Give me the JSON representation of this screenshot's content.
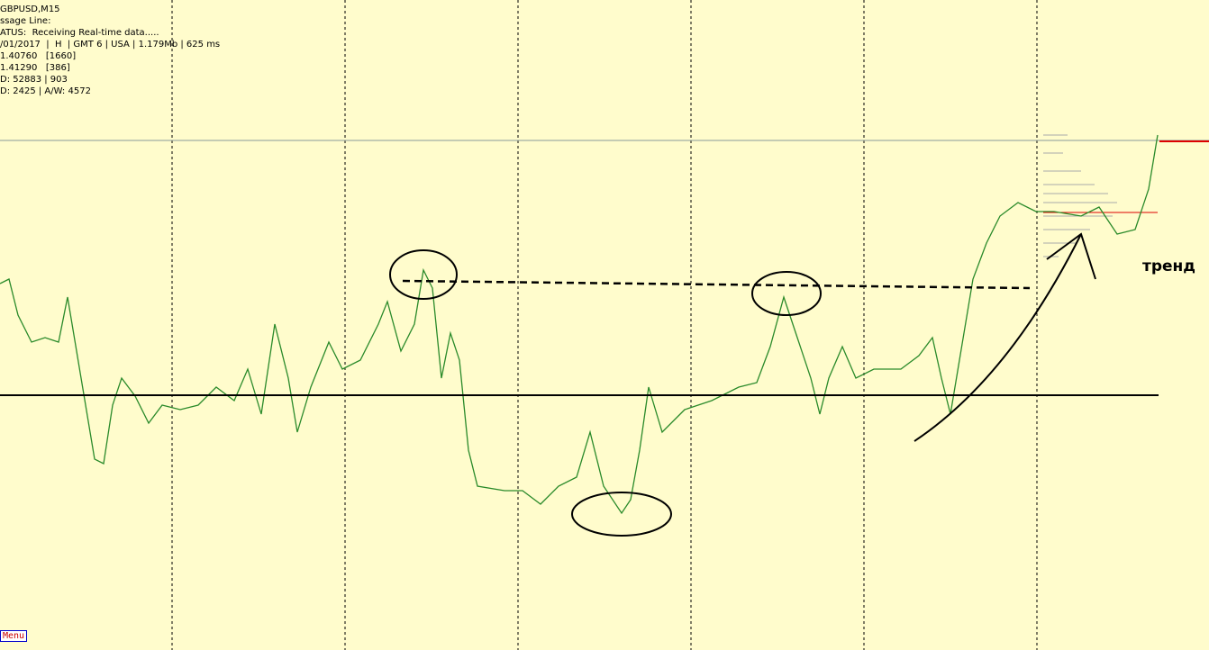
{
  "info_panel": {
    "lines": [
      "GBPUSD,M15",
      "ssage Line:",
      "ATUS:  Receiving Real-time data.....",
      "/01/2017  |  H  | GMT 6 | USA | 1.179Mb | 625 ms",
      "1.40760   [1660]",
      "1.41290   [386]",
      "D: 52883 | 903",
      "D: 2425 | A/W: 4572"
    ]
  },
  "annotation": {
    "label": "тренд"
  },
  "menu": {
    "label": "Menu"
  }
}
